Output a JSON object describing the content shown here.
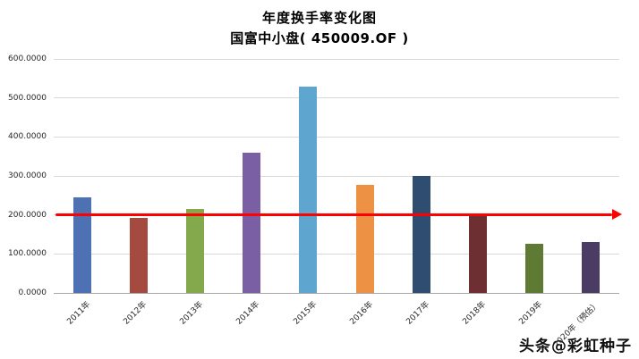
{
  "header": {
    "title": "年度换手率变化图",
    "subtitle": "国富中小盘( 450009.OF )"
  },
  "watermark": "头条@彩虹种子",
  "chart_data": {
    "type": "bar",
    "title": "年度换手率变化图",
    "subtitle": "国富中小盘( 450009.OF )",
    "categories": [
      "2011年",
      "2012年",
      "2013年",
      "2014年",
      "2015年",
      "2016年",
      "2017年",
      "2018年",
      "2019年",
      "2020年（预估）"
    ],
    "values": [
      245,
      193,
      216,
      360,
      528,
      278,
      300,
      197,
      125,
      131
    ],
    "bar_colors": [
      "#4E71B3",
      "#A44A3F",
      "#84A84C",
      "#7B5FA5",
      "#5EA6CF",
      "#ED9144",
      "#2F4D70",
      "#6E2F33",
      "#5E7A33",
      "#4A3C62"
    ],
    "xlabel": "",
    "ylabel": "",
    "ylim": [
      0,
      600
    ],
    "ytick_step": 100,
    "ytick_format_decimals": 4,
    "grid": true,
    "legend": "none",
    "ref_line": {
      "value": 200,
      "color": "#FF0000",
      "style": "horizontal-arrow-right"
    }
  }
}
